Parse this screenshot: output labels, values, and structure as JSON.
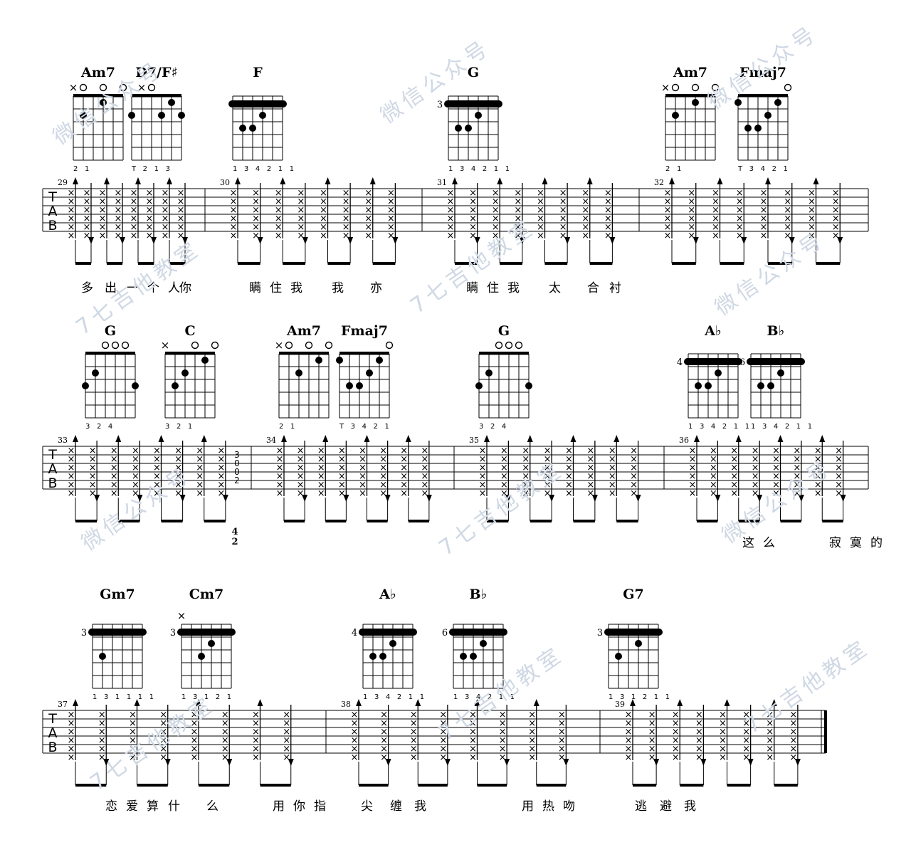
{
  "sheet": {
    "tab_label": [
      "T",
      "A",
      "B"
    ],
    "watermark": [
      "微信公众号",
      "7七吉他教室"
    ],
    "rows": [
      {
        "chords": [
          {
            "name": "Am7",
            "fingering": "2 1"
          },
          {
            "name": "D7/F♯",
            "fingering": "T  2 1 3"
          },
          {
            "name": "F",
            "fingering": "1 3 4 2 1 1"
          },
          {
            "name": "G",
            "fret": "3",
            "fingering": "1 3 4 2 1 1"
          },
          {
            "name": "Am7",
            "fingering": "2 1"
          },
          {
            "name": "Fmaj7",
            "fingering": "T 3 4 2 1"
          }
        ],
        "measures": [
          "29",
          "30",
          "31",
          "32"
        ],
        "lyrics": [
          "多",
          "出",
          "一个人",
          "你",
          "瞒住我",
          "我",
          "亦",
          "瞒住我",
          "太",
          "合",
          "衬"
        ],
        "fret_numbers": []
      },
      {
        "chords": [
          {
            "name": "G",
            "fingering": "3 2   4"
          },
          {
            "name": "C",
            "fingering": "3 2  1"
          },
          {
            "name": "Am7",
            "fingering": "2 1"
          },
          {
            "name": "Fmaj7",
            "fingering": "T 3 4 2 1"
          },
          {
            "name": "G",
            "fingering": "3 2   4"
          },
          {
            "name": "A♭",
            "fret": "4",
            "fingering": "1 3 4 2 1 1"
          },
          {
            "name": "B♭",
            "fret": "6",
            "fingering": "1 3 4 2 1 1"
          }
        ],
        "measures": [
          "33",
          "34",
          "35",
          "36"
        ],
        "lyrics": [
          "这么",
          "寂寞的"
        ],
        "fret_numbers": [
          "3",
          "0",
          "0",
          "2"
        ],
        "time_signature": [
          "4",
          "2"
        ]
      },
      {
        "chords": [
          {
            "name": "Gm7",
            "fret": "3",
            "fingering": "1 3 1 1 1 1"
          },
          {
            "name": "Cm7",
            "fret": "3",
            "fingering": "1 3 1 2 1"
          },
          {
            "name": "A♭",
            "fret": "4",
            "fingering": "1 3 4 2 1 1"
          },
          {
            "name": "B♭",
            "fret": "6",
            "fingering": "1 3 4 2 1 1"
          },
          {
            "name": "G7",
            "fret": "3",
            "fingering": "1 3 1 2 1 1"
          }
        ],
        "measures": [
          "37",
          "38",
          "39"
        ],
        "lyrics": [
          "恋爱算",
          "什",
          "么",
          "用你指",
          "尖",
          "缠",
          "我",
          "用热吻",
          "逃",
          "避",
          "我"
        ],
        "fret_numbers": []
      }
    ]
  }
}
